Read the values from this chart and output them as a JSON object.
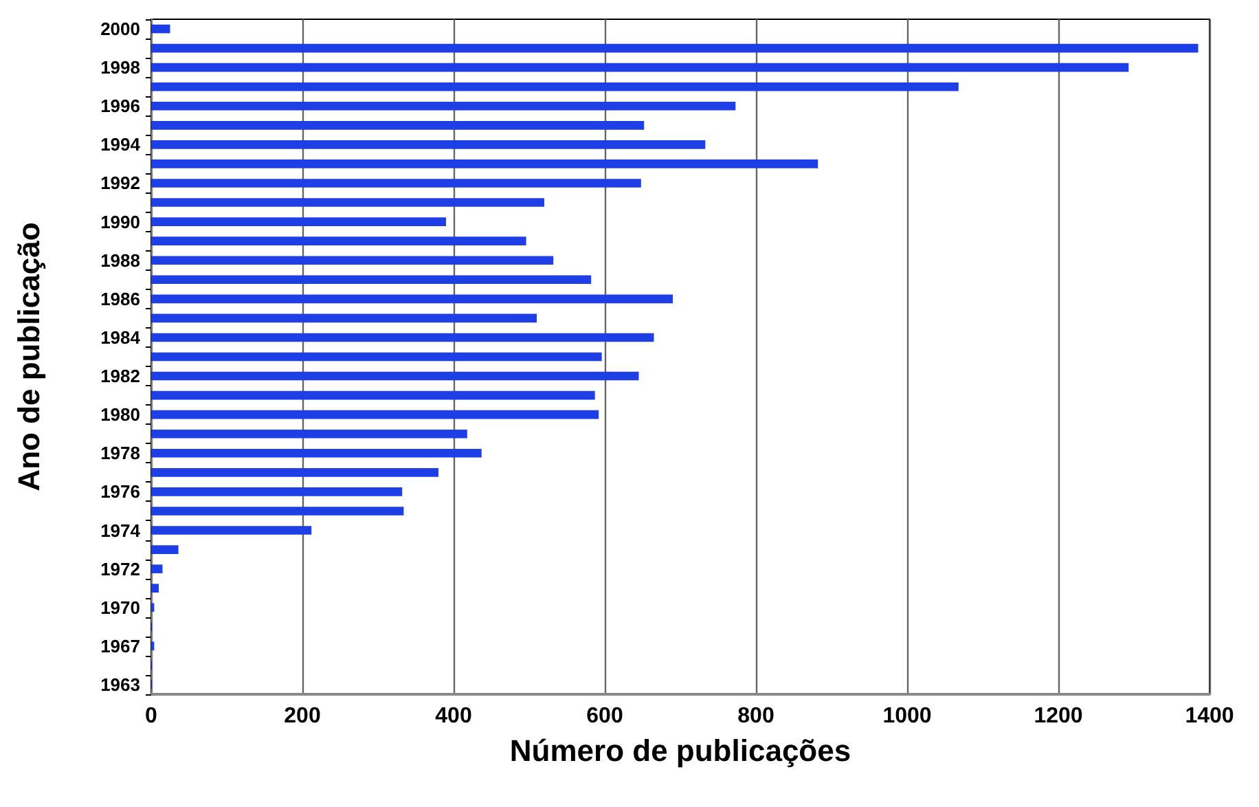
{
  "chart_data": {
    "type": "bar",
    "orientation": "horizontal",
    "xlabel": "Número de publicações",
    "ylabel": "Ano de publicação",
    "categories": [
      "2000",
      null,
      "1998",
      null,
      "1996",
      null,
      "1994",
      null,
      "1992",
      null,
      "1990",
      null,
      "1988",
      null,
      "1986",
      null,
      "1984",
      null,
      "1982",
      null,
      "1980",
      null,
      "1978",
      null,
      "1976",
      null,
      "1974",
      null,
      "1972",
      null,
      "1970",
      null,
      "1967",
      null,
      "1963"
    ],
    "values": [
      25,
      1385,
      1293,
      1068,
      773,
      652,
      733,
      882,
      648,
      520,
      390,
      496,
      532,
      582,
      690,
      510,
      665,
      596,
      645,
      587,
      592,
      418,
      437,
      380,
      332,
      334,
      212,
      36,
      15,
      10,
      4,
      1,
      4,
      1,
      1
    ],
    "color": "#1f3fe6",
    "xlim": [
      0,
      1400
    ],
    "xticks": [
      0,
      200,
      400,
      600,
      800,
      1000,
      1200,
      1400
    ],
    "grid": "x"
  }
}
